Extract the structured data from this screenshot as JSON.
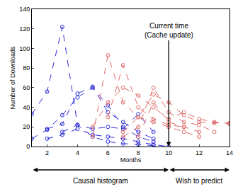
{
  "chart_data": {
    "type": "line",
    "xlabel": "Months",
    "ylabel": "Number of Downloads",
    "x": [
      1,
      2,
      3,
      4,
      5,
      6,
      7,
      8,
      9,
      10,
      11,
      12,
      13,
      14
    ],
    "xlim": [
      1,
      14
    ],
    "xticks": [
      2,
      4,
      6,
      8,
      10,
      12,
      14
    ],
    "ylim": [
      0,
      140
    ],
    "yticks": [
      0,
      20,
      40,
      60,
      80,
      100,
      120,
      140
    ],
    "grid": false,
    "marker": "circle-open",
    "line_style": "dash",
    "series": [
      {
        "color": "#2b2bd9",
        "values": [
          33,
          56,
          122,
          22,
          10,
          5,
          3,
          2,
          1,
          null,
          null,
          null,
          null,
          null
        ]
      },
      {
        "color": "#2b2bd9",
        "values": [
          8,
          17,
          32,
          50,
          60,
          42,
          20,
          10,
          5,
          null,
          null,
          null,
          null,
          null
        ]
      },
      {
        "color": "#2b2bd9",
        "values": [
          null,
          18,
          23,
          54,
          61,
          35,
          25,
          15,
          8,
          null,
          null,
          null,
          null,
          null
        ]
      },
      {
        "color": "#2b2bd9",
        "values": [
          null,
          null,
          15,
          22,
          18,
          20,
          18,
          33,
          15,
          null,
          null,
          null,
          null,
          null
        ]
      },
      {
        "color": "#2b2bd9",
        "values": [
          null,
          8,
          12,
          18,
          12,
          10,
          8,
          5,
          2,
          0,
          null,
          null,
          null,
          null
        ]
      },
      {
        "color": "#e06666",
        "values": [
          null,
          null,
          null,
          null,
          10,
          93,
          45,
          30,
          25,
          20,
          15,
          10,
          null,
          null
        ]
      },
      {
        "color": "#e06666",
        "values": [
          null,
          null,
          null,
          null,
          null,
          30,
          83,
          40,
          28,
          22,
          20,
          null,
          null,
          null
        ]
      },
      {
        "color": "#e06666",
        "values": [
          null,
          null,
          null,
          null,
          20,
          45,
          60,
          52,
          40,
          28,
          35,
          28,
          25,
          23
        ]
      },
      {
        "color": "#e06666",
        "values": [
          null,
          null,
          null,
          null,
          null,
          null,
          15,
          30,
          53,
          45,
          32,
          25,
          24,
          24
        ]
      },
      {
        "color": "#e06666",
        "values": [
          null,
          null,
          null,
          null,
          null,
          null,
          10,
          20,
          60,
          35,
          25,
          22,
          15,
          null
        ]
      },
      {
        "color": "#e06666",
        "values": [
          null,
          null,
          null,
          null,
          null,
          null,
          null,
          10,
          45,
          25,
          20,
          15,
          null,
          null
        ]
      }
    ],
    "annotations": [
      {
        "text": "Current time\n(Cache update)",
        "x": 10,
        "y": 0
      },
      {
        "text": "Causal histogram",
        "from": 1,
        "to": 10
      },
      {
        "text": "Wish to predict",
        "from": 10,
        "to": 14
      }
    ]
  }
}
